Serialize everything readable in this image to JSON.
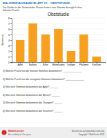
{
  "header": "BALKENDIAGRAMM BLATT 1C - OBSTSTUDIE",
  "subheader": [
    "Die Kinder in der 3a/meander Klasse hatten eine Stimme bezüglich ihrer",
    "liebsten Frucht."
  ],
  "chart_data": {
    "type": "bar",
    "title": "Obststudie",
    "categories": [
      "Apfel",
      "Banane",
      "Birne",
      "Weintrauben",
      "Orangen",
      "Pflaumen",
      "Kirschen"
    ],
    "values": [
      4,
      7,
      5,
      6,
      2,
      5,
      1
    ],
    "color": "#F5A020",
    "ylabel": "Stimmen",
    "ylim": [
      0,
      8
    ],
    "yticks": [
      0,
      1,
      2,
      3,
      4,
      5,
      6,
      7,
      8
    ],
    "grid": true
  },
  "questions": [
    "1) Welche Frucht hat die meisten Stimmen bekommen? ______________",
    "2) Welche Frucht hat die wenigsten Stimmen bekommen? ______________",
    "3) Wie viele Stimmen bekommen die Apfel? ______",
    "4) Wie viele Stimmen bekommen die Birnen? ______",
    "5) Wie viele Stimmen bekommen die Orangen? ______",
    "6) Wie viele Stimmen bekommen die Kirschen? ______"
  ],
  "footer": {
    "brand": "MathCenter",
    "tagline": "Accessibility for Everyone",
    "website": "Besucht uns auf www.math-center.org",
    "copyright": "Copyright © MathCenter 2020"
  }
}
